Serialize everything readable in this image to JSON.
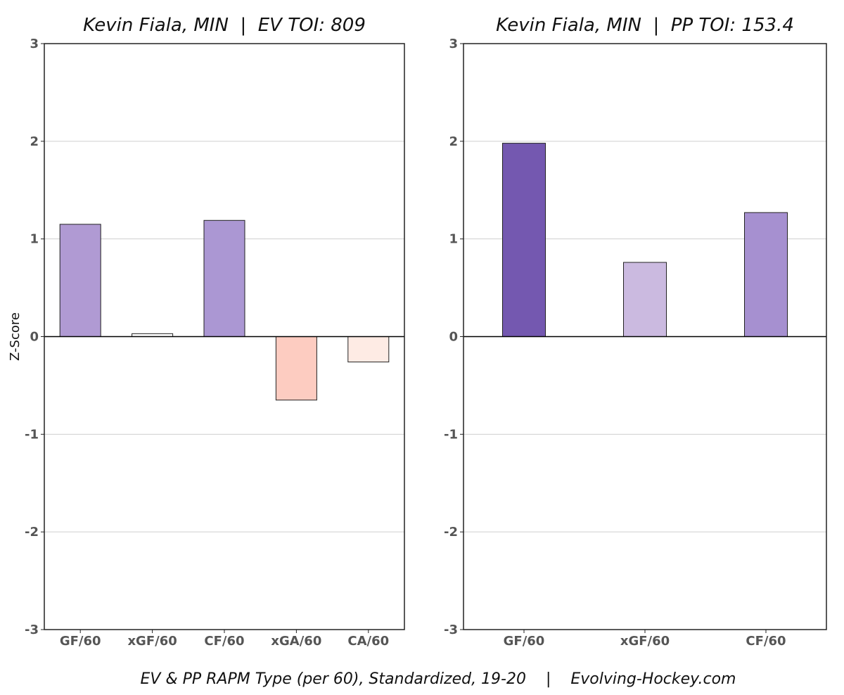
{
  "chart_data": [
    {
      "type": "bar",
      "title": "Kevin Fiala, MIN  |  EV TOI: 809",
      "ylabel": "Z-Score",
      "xlabel": "",
      "ylim": [
        -3,
        3
      ],
      "yticks": [
        -3,
        -2,
        -1,
        0,
        1,
        2,
        3
      ],
      "grid": true,
      "categories": [
        "GF/60",
        "xGF/60",
        "CF/60",
        "xGA/60",
        "CA/60"
      ],
      "values": [
        1.15,
        0.03,
        1.19,
        -0.65,
        -0.26
      ],
      "colors": [
        "#b09ad3",
        "#ffffff",
        "#ab97d3",
        "#fdccc1",
        "#feebe4"
      ]
    },
    {
      "type": "bar",
      "title": "Kevin Fiala, MIN  |  PP TOI: 153.4",
      "ylabel": "",
      "xlabel": "",
      "ylim": [
        -3,
        3
      ],
      "yticks": [
        -3,
        -2,
        -1,
        0,
        1,
        2,
        3
      ],
      "grid": true,
      "categories": [
        "GF/60",
        "xGF/60",
        "CF/60"
      ],
      "values": [
        1.98,
        0.76,
        1.27
      ],
      "colors": [
        "#7458b0",
        "#cbbae0",
        "#a690d0"
      ]
    }
  ],
  "caption": "EV & PP RAPM Type (per 60), Standardized, 19-20    |    Evolving-Hockey.com"
}
